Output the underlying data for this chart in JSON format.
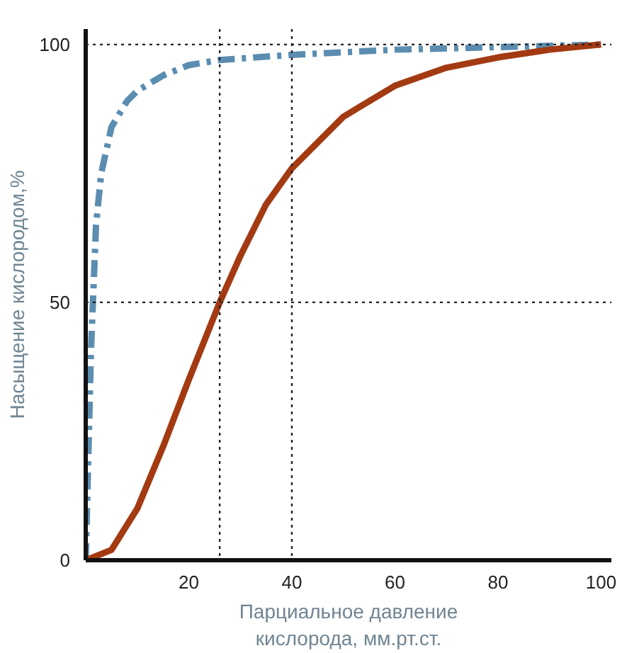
{
  "chart_data": {
    "type": "line",
    "xlabel": "Парциальное давление\nкислорода, мм.рт.ст.",
    "ylabel": "Насыщение кислородом,%",
    "xlim": [
      0,
      102
    ],
    "ylim": [
      0,
      103
    ],
    "xticks": [
      20,
      40,
      60,
      80,
      100
    ],
    "yticks": [
      0,
      50,
      100
    ],
    "grid": false,
    "series": [
      {
        "color": "#5b8db0",
        "line_style": "dashed",
        "x": [
          0,
          1,
          2,
          3,
          5,
          8,
          10,
          15,
          20,
          26,
          40,
          60,
          80,
          100
        ],
        "values": [
          0,
          40,
          65,
          75,
          84,
          89,
          91,
          94,
          96,
          97,
          98,
          99,
          99.5,
          100
        ]
      },
      {
        "color": "#a33a12",
        "line_style": "solid",
        "x": [
          0,
          5,
          10,
          15,
          20,
          26,
          30,
          35,
          40,
          50,
          60,
          70,
          80,
          90,
          100
        ],
        "values": [
          0,
          2,
          10,
          22,
          35,
          50,
          59,
          69,
          76,
          86,
          92,
          95.5,
          97.5,
          99,
          100
        ]
      }
    ],
    "ref_lines": [
      {
        "axis": "x",
        "value": 26,
        "line_style": "dotted",
        "color": "#222222"
      },
      {
        "axis": "x",
        "value": 40,
        "line_style": "dotted",
        "color": "#222222"
      },
      {
        "axis": "y",
        "value": 50,
        "line_style": "dotted",
        "color": "#222222"
      },
      {
        "axis": "y",
        "value": 100,
        "line_style": "dotted",
        "color": "#222222"
      }
    ]
  }
}
